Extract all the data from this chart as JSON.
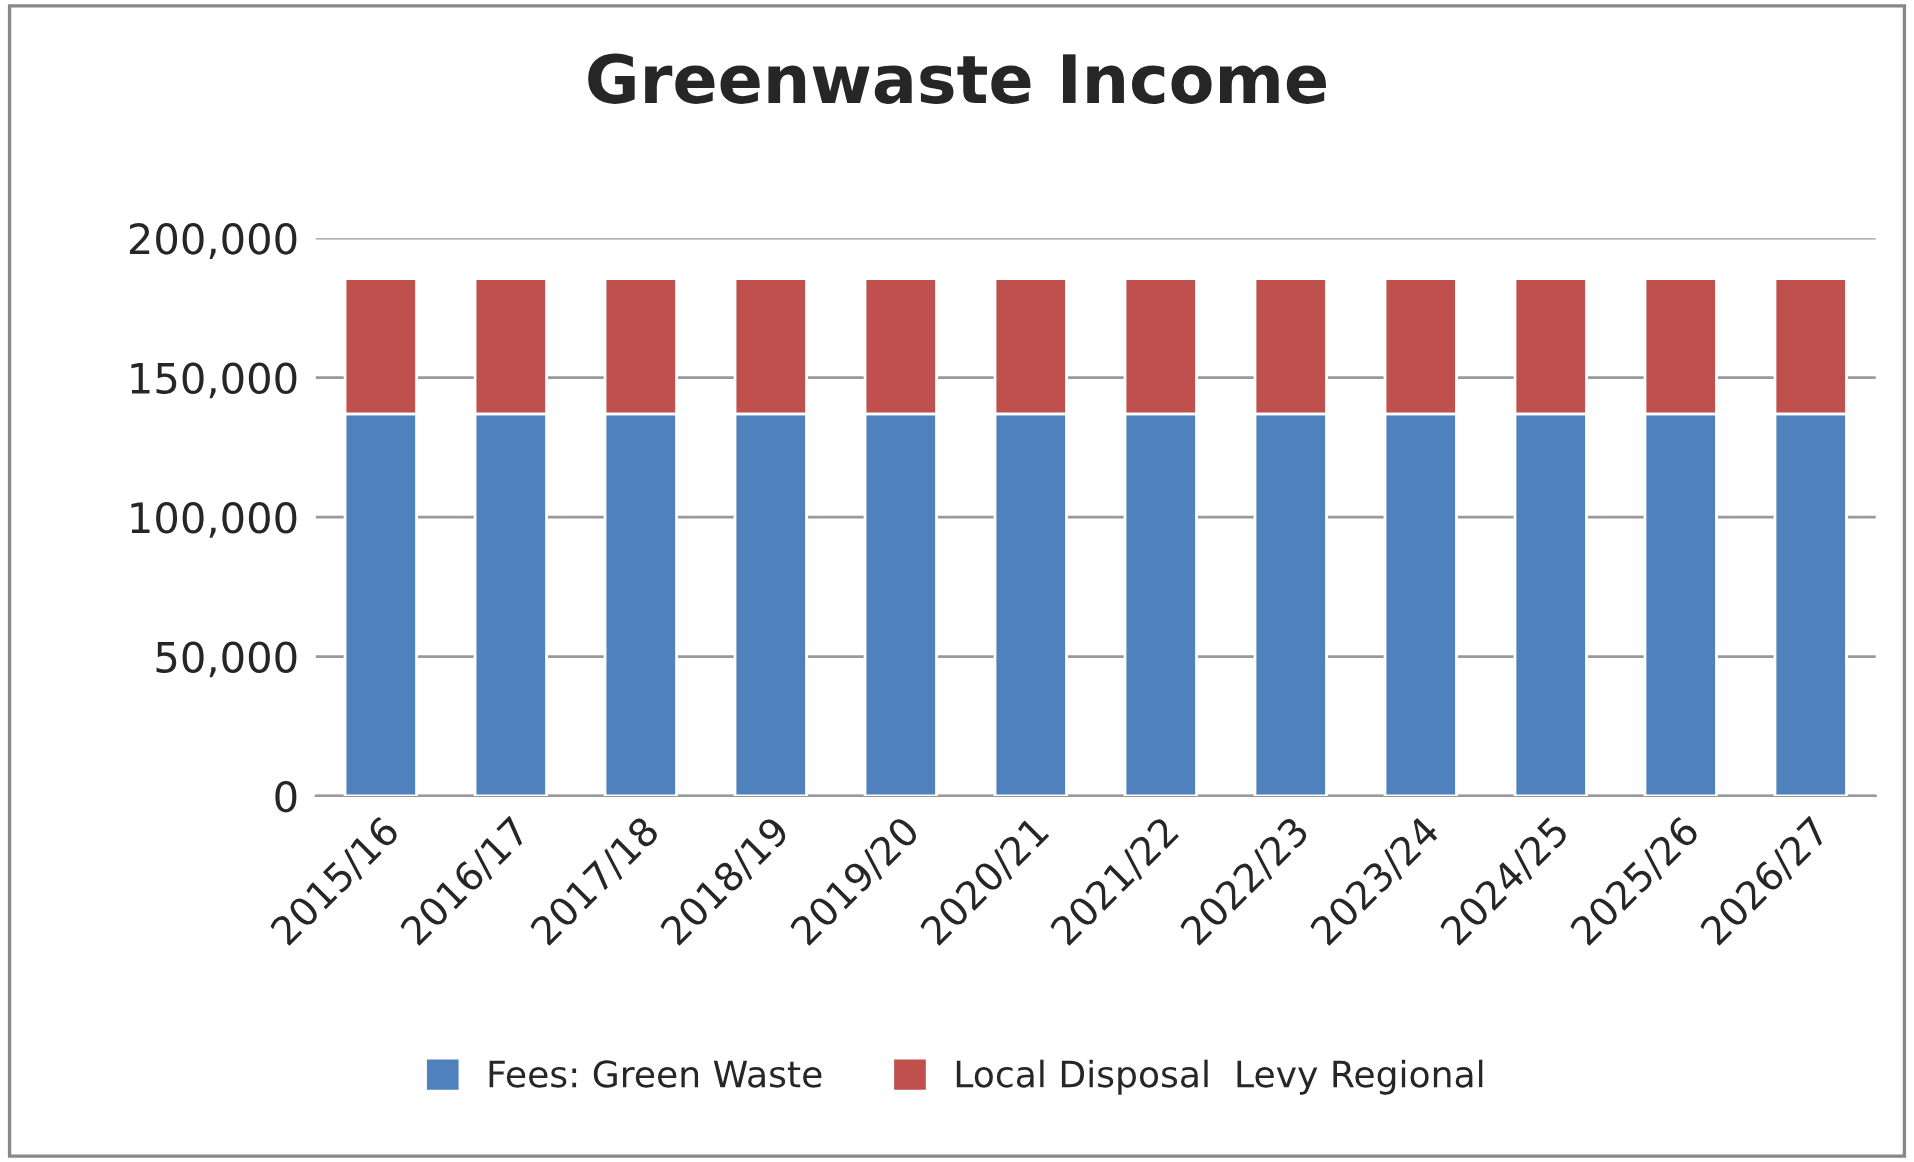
{
  "chart_data": {
    "type": "bar",
    "title": "Greenwaste Income",
    "stacked": true,
    "categories": [
      "2015/16",
      "2016/17",
      "2017/18",
      "2018/19",
      "2019/20",
      "2020/21",
      "2021/22",
      "2022/23",
      "2023/24",
      "2024/25",
      "2025/26",
      "2026/27"
    ],
    "series": [
      {
        "name": "Fees: Green Waste",
        "color": "#4f81bd",
        "values": [
          137000,
          137000,
          137000,
          137000,
          137000,
          137000,
          137000,
          137000,
          137000,
          137000,
          137000,
          137000
        ]
      },
      {
        "name": "Local Disposal  Levy Regional",
        "color": "#c0504d",
        "values": [
          48500,
          48500,
          48500,
          48500,
          48500,
          48500,
          48500,
          48500,
          48500,
          48500,
          48500,
          48500
        ]
      }
    ],
    "ylim": [
      0,
      200000
    ],
    "yticks": [
      {
        "value": 0,
        "label": "0"
      },
      {
        "value": 50000,
        "label": "50,000"
      },
      {
        "value": 100000,
        "label": "100,000"
      },
      {
        "value": 150000,
        "label": "150,000"
      },
      {
        "value": 200000,
        "label": "200,000"
      }
    ],
    "grid": "y",
    "legend": "bottom"
  }
}
